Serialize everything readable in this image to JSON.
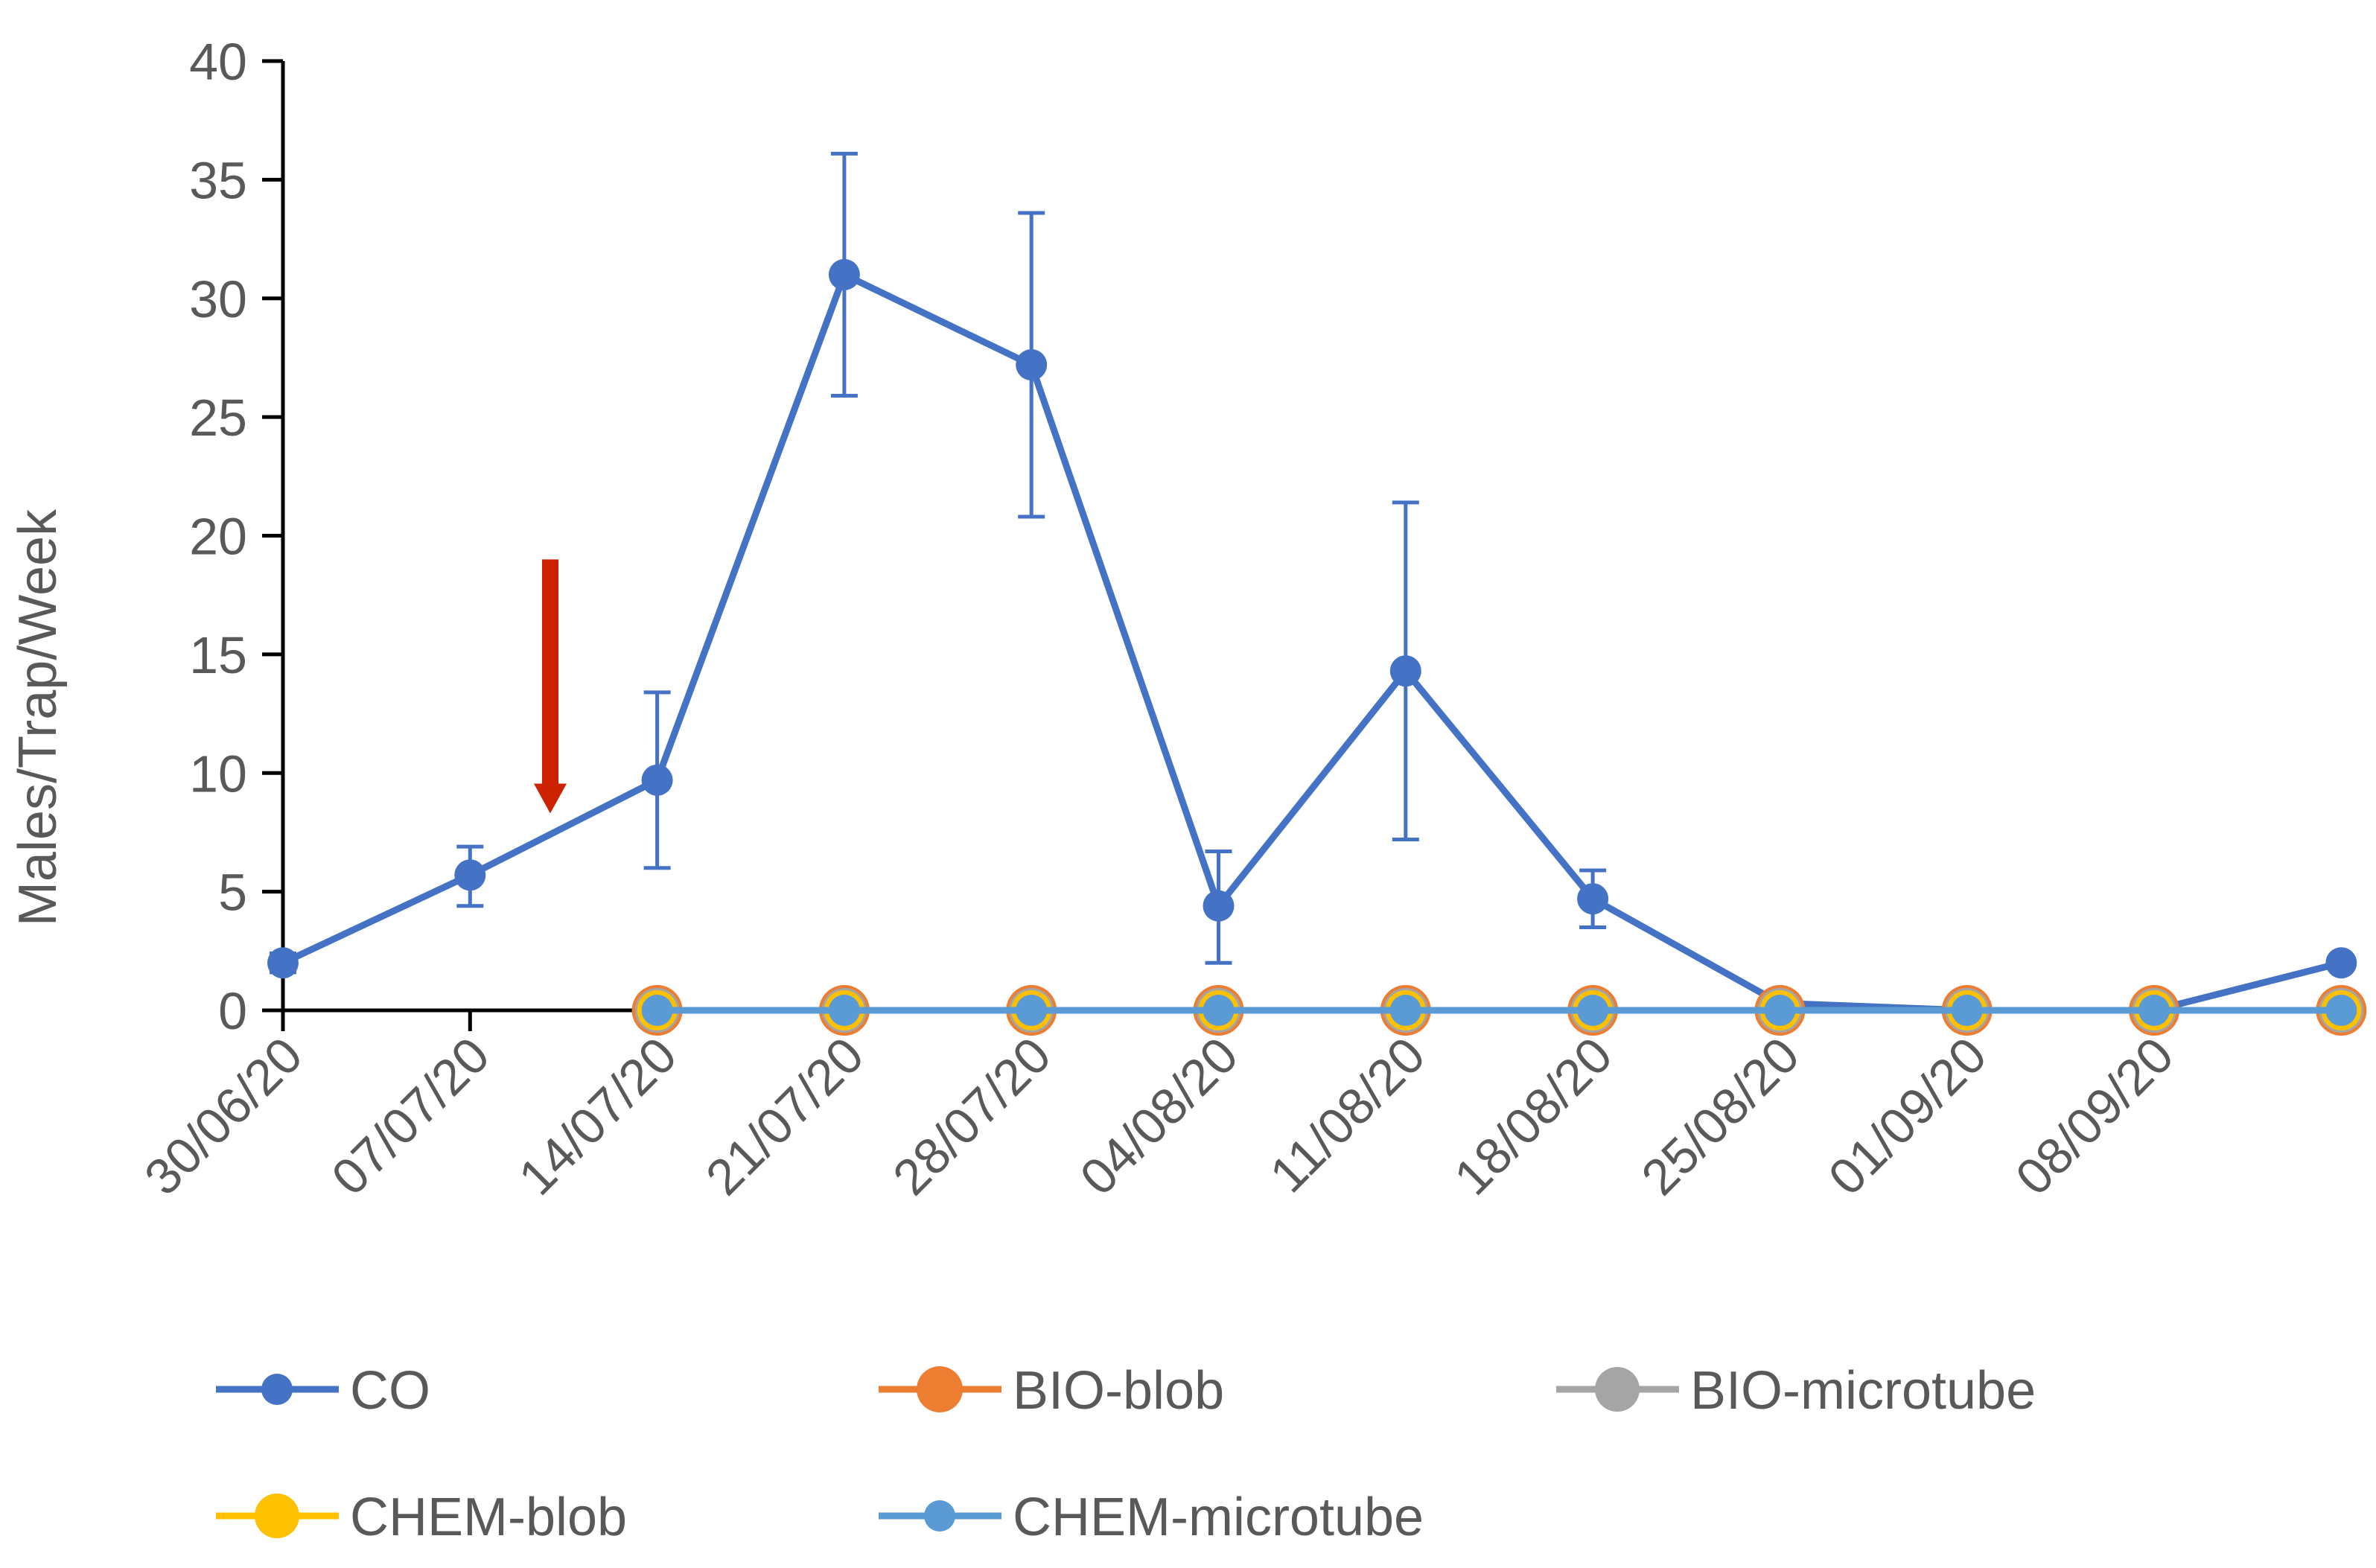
{
  "chart_data": {
    "type": "line",
    "title": "",
    "xlabel": "",
    "ylabel": "Males/Trap/Week",
    "ylim": [
      0,
      40
    ],
    "yticks": [
      0,
      5,
      10,
      15,
      20,
      25,
      30,
      35,
      40
    ],
    "x_tick_labels": [
      "30/06/20",
      "07/07/20",
      "14/07/20",
      "21/07/20",
      "28/07/20",
      "04/08/20",
      "11/08/20",
      "18/08/20",
      "25/08/20",
      "01/09/20",
      "08/09/20"
    ],
    "grid": false,
    "legend_position": "bottom",
    "annotation": {
      "type": "arrow",
      "color": "#CC2200",
      "points_down_at_date": "2020-07-10",
      "from_y": 19,
      "to_y": 8.3
    },
    "series": [
      {
        "name": "CO",
        "color": "#4472C4",
        "points": [
          {
            "date": "2020-06-30",
            "y": 2.0,
            "err": 0.4
          },
          {
            "date": "2020-07-07",
            "y": 5.7,
            "err_low": 1.3,
            "err_high": 1.2
          },
          {
            "date": "2020-07-14",
            "y": 9.7,
            "err_low": 3.7,
            "err_high": 3.7
          },
          {
            "date": "2020-07-21",
            "y": 31.0,
            "err_low": 5.1,
            "err_high": 5.1
          },
          {
            "date": "2020-07-28",
            "y": 27.2,
            "err_low": 6.4,
            "err_high": 6.4
          },
          {
            "date": "2020-08-04",
            "y": 4.4,
            "err_low": 2.4,
            "err_high": 2.3
          },
          {
            "date": "2020-08-11",
            "y": 14.3,
            "err_low": 7.1,
            "err_high": 7.1
          },
          {
            "date": "2020-08-18",
            "y": 4.7,
            "err_low": 1.2,
            "err_high": 1.2
          },
          {
            "date": "2020-08-25",
            "y": 0.3
          },
          {
            "date": "2020-09-01",
            "y": 0.0
          },
          {
            "date": "2020-09-08",
            "y": 0.0
          },
          {
            "date": "2020-09-15",
            "y": 2.0
          }
        ]
      },
      {
        "name": "BIO-blob",
        "color": "#ED7D31",
        "points": [
          {
            "date": "2020-07-14",
            "y": 0
          },
          {
            "date": "2020-07-21",
            "y": 0
          },
          {
            "date": "2020-07-28",
            "y": 0
          },
          {
            "date": "2020-08-04",
            "y": 0
          },
          {
            "date": "2020-08-11",
            "y": 0
          },
          {
            "date": "2020-08-18",
            "y": 0
          },
          {
            "date": "2020-08-25",
            "y": 0
          },
          {
            "date": "2020-09-01",
            "y": 0
          },
          {
            "date": "2020-09-08",
            "y": 0
          },
          {
            "date": "2020-09-15",
            "y": 0
          }
        ]
      },
      {
        "name": "BIO-microtube",
        "color": "#A5A5A5",
        "points": [
          {
            "date": "2020-07-14",
            "y": 0
          },
          {
            "date": "2020-07-21",
            "y": 0
          },
          {
            "date": "2020-07-28",
            "y": 0
          },
          {
            "date": "2020-08-04",
            "y": 0
          },
          {
            "date": "2020-08-11",
            "y": 0
          },
          {
            "date": "2020-08-18",
            "y": 0
          },
          {
            "date": "2020-08-25",
            "y": 0
          },
          {
            "date": "2020-09-01",
            "y": 0
          },
          {
            "date": "2020-09-08",
            "y": 0
          },
          {
            "date": "2020-09-15",
            "y": 0
          }
        ]
      },
      {
        "name": "CHEM-blob",
        "color": "#FFC000",
        "points": [
          {
            "date": "2020-07-14",
            "y": 0
          },
          {
            "date": "2020-07-21",
            "y": 0
          },
          {
            "date": "2020-07-28",
            "y": 0
          },
          {
            "date": "2020-08-04",
            "y": 0
          },
          {
            "date": "2020-08-11",
            "y": 0
          },
          {
            "date": "2020-08-18",
            "y": 0
          },
          {
            "date": "2020-08-25",
            "y": 0
          },
          {
            "date": "2020-09-01",
            "y": 0
          },
          {
            "date": "2020-09-08",
            "y": 0
          },
          {
            "date": "2020-09-15",
            "y": 0
          }
        ]
      },
      {
        "name": "CHEM-microtube",
        "color": "#5B9BD5",
        "points": [
          {
            "date": "2020-07-14",
            "y": 0
          },
          {
            "date": "2020-07-21",
            "y": 0
          },
          {
            "date": "2020-07-28",
            "y": 0
          },
          {
            "date": "2020-08-04",
            "y": 0
          },
          {
            "date": "2020-08-11",
            "y": 0
          },
          {
            "date": "2020-08-18",
            "y": 0
          },
          {
            "date": "2020-08-25",
            "y": 0
          },
          {
            "date": "2020-09-01",
            "y": 0
          },
          {
            "date": "2020-09-08",
            "y": 0
          },
          {
            "date": "2020-09-15",
            "y": 0
          }
        ]
      }
    ]
  }
}
